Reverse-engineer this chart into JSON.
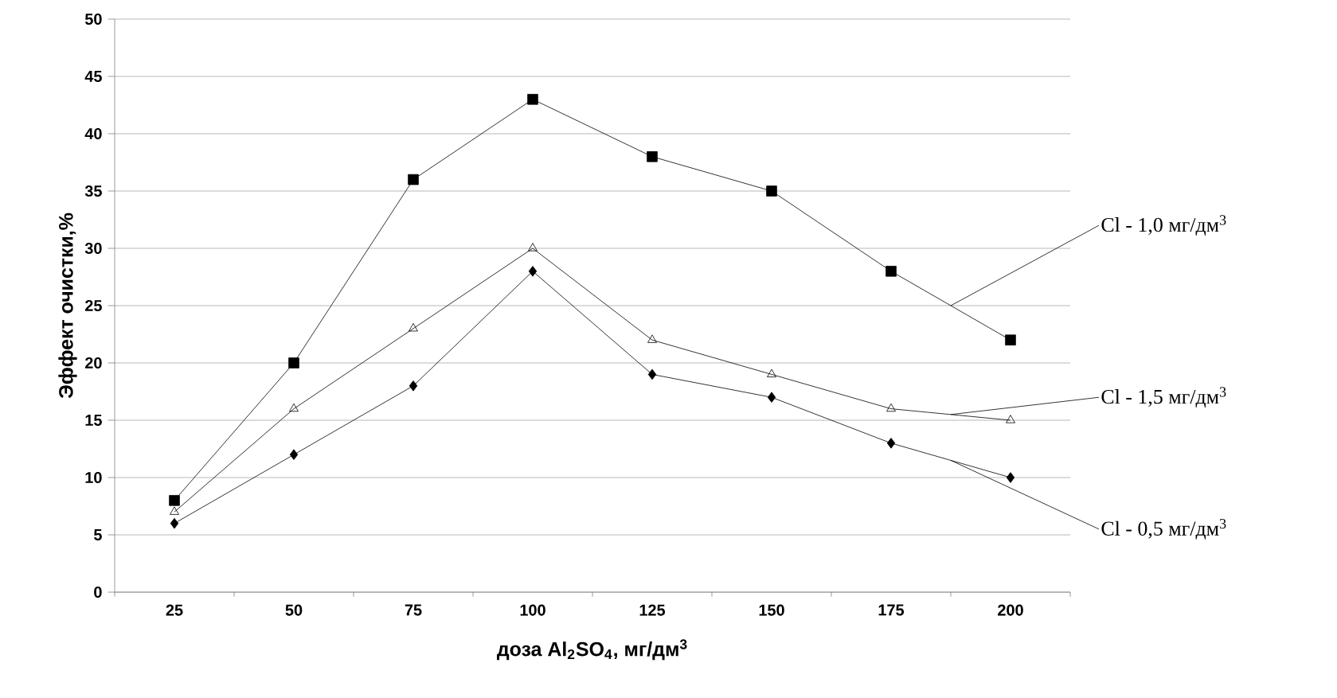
{
  "chart_data": {
    "type": "line",
    "xlabel": "доза Al$_{2}$SO$_{4}$, мг/дм$^{3}$",
    "ylabel": "Эффект очистки,%",
    "categories": [
      "25",
      "50",
      "75",
      "100",
      "125",
      "150",
      "175",
      "200"
    ],
    "series": [
      {
        "name": "Cl - 1,0 мг/дм$^{3}$",
        "color": "#000000",
        "marker": "square",
        "values": [
          8,
          20,
          36,
          43,
          38,
          35,
          28,
          22
        ]
      },
      {
        "name": "Cl - 1,5 мг/дм$^{3}$",
        "color": "#000000",
        "marker": "triangle",
        "values": [
          7,
          16,
          23,
          30,
          22,
          19,
          16,
          15
        ]
      },
      {
        "name": "Cl - 0,5 мг/дм$^{3}$",
        "color": "#000000",
        "marker": "diamond",
        "values": [
          6,
          12,
          18,
          28,
          19,
          17,
          13,
          10
        ]
      }
    ],
    "ylim": [
      0,
      50
    ],
    "yticks": [
      0,
      5,
      10,
      15,
      20,
      25,
      30,
      35,
      40,
      45,
      50
    ],
    "grid": "y",
    "line_style": "solid"
  }
}
